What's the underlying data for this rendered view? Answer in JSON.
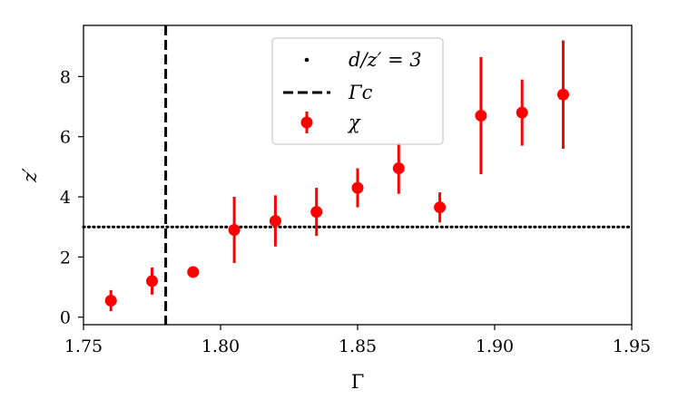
{
  "chart_data": {
    "type": "scatter",
    "xlabel": "Γ",
    "ylabel": "z′",
    "xlim": [
      1.75,
      1.95
    ],
    "ylim": [
      -0.25,
      9.7
    ],
    "xticks": [
      "1.75",
      "1.80",
      "1.85",
      "1.90",
      "1.95"
    ],
    "xtick_values": [
      1.75,
      1.8,
      1.85,
      1.9,
      1.95
    ],
    "yticks": [
      "0",
      "2",
      "4",
      "6",
      "8"
    ],
    "ytick_values": [
      0,
      2,
      4,
      6,
      8
    ],
    "grid": false,
    "legend_position": "top-center",
    "reference_lines": [
      {
        "name": "d/z′ = 3",
        "orientation": "horizontal",
        "value": 3,
        "style": "dotted",
        "color": "#000000"
      },
      {
        "name": "Γc",
        "orientation": "vertical",
        "value": 1.78,
        "style": "dashed",
        "color": "#000000"
      }
    ],
    "series": [
      {
        "name": "χ",
        "color": "#ff0000",
        "x": [
          1.76,
          1.775,
          1.79,
          1.805,
          1.82,
          1.835,
          1.85,
          1.865,
          1.88,
          1.895,
          1.91,
          1.925
        ],
        "y": [
          0.55,
          1.2,
          1.5,
          2.9,
          3.2,
          3.5,
          4.3,
          4.95,
          3.65,
          6.7,
          6.8,
          7.4
        ],
        "err": [
          0.35,
          0.45,
          0.15,
          1.1,
          0.85,
          0.8,
          0.65,
          0.85,
          0.5,
          1.95,
          1.1,
          1.8
        ]
      }
    ],
    "legend": [
      {
        "label": "d/z′ = 3",
        "marker": "dot"
      },
      {
        "label": "Γc",
        "marker": "dash"
      },
      {
        "label": "χ",
        "marker": "point-errorbar"
      }
    ]
  }
}
